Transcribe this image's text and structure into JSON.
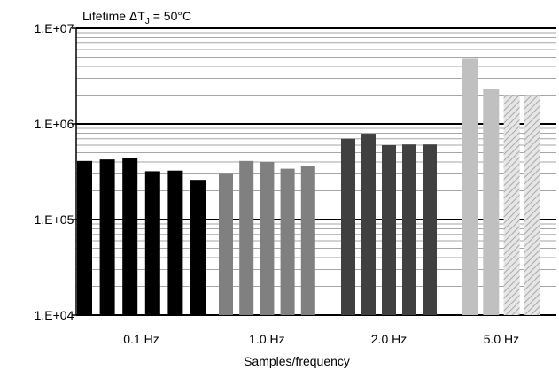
{
  "chart_data": {
    "type": "bar",
    "title": "Lifetime ΔTⱼ = 50°C",
    "title_parts": {
      "prefix": "Lifetime ",
      "delta": "ΔT",
      "sub": "J",
      "suffix": " = 50°C"
    },
    "xlabel": "Samples/frequency",
    "ylabel": "",
    "y_scale": "log",
    "ylim": [
      10000,
      10000000
    ],
    "y_ticks": [
      {
        "value": 10000,
        "label": "1.E+04"
      },
      {
        "value": 100000,
        "label": "1.E+05"
      },
      {
        "value": 1000000,
        "label": "1.E+06"
      },
      {
        "value": 10000000,
        "label": "1.E+07"
      }
    ],
    "grid": "major and minor horizontal",
    "legend": "none",
    "groups": [
      {
        "category": "0.1 Hz",
        "color": "#000000",
        "values": [
          410000,
          425000,
          440000,
          320000,
          325000,
          260000
        ],
        "hatched_from": null
      },
      {
        "category": "1.0 Hz",
        "color": "#808080",
        "values": [
          300000,
          410000,
          400000,
          340000,
          360000
        ],
        "hatched_from": null
      },
      {
        "category": "2.0 Hz",
        "color": "#404040",
        "values": [
          700000,
          790000,
          600000,
          610000,
          610000
        ],
        "hatched_from": null
      },
      {
        "category": "5.0 Hz",
        "color": "#c0c0c0",
        "values": [
          4800000,
          2300000,
          2000000,
          2000000
        ],
        "hatched_from": 2
      }
    ]
  }
}
